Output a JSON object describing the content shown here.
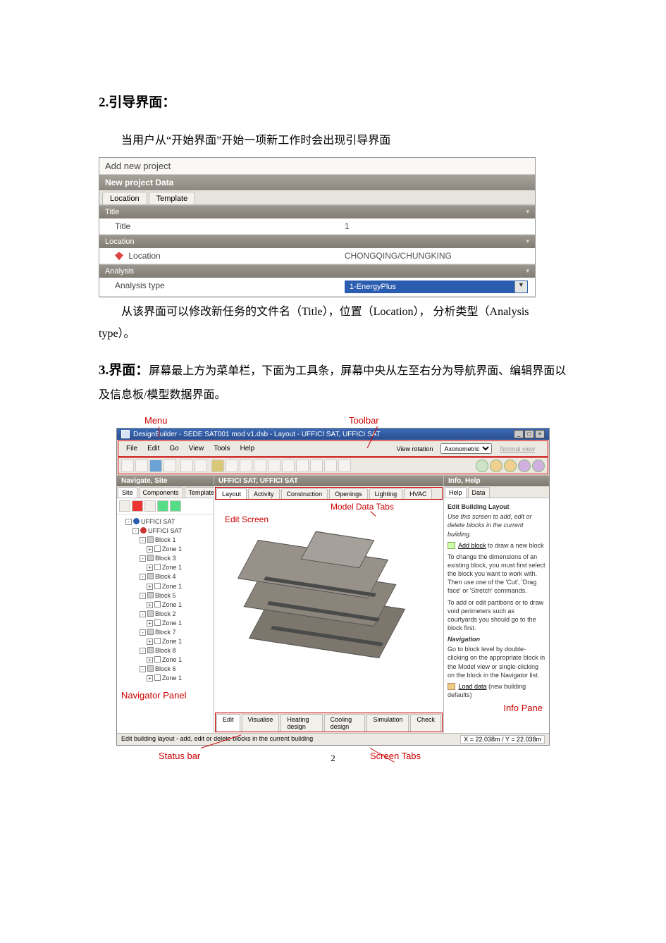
{
  "section2": {
    "heading": "2.引导界面：",
    "intro": "当用户从“开始界面”开始一项新工作时会出现引导界面",
    "after1": "从该界面可以修改新任务的文件名（Title），位置（Location）， 分析类型（Analysis type）。"
  },
  "dialog": {
    "title": "Add new project",
    "panel": "New project Data",
    "tabs": [
      "Location",
      "Template"
    ],
    "sec_title": "Title",
    "row_title_label": "Title",
    "row_title_value": "1",
    "sec_location": "Location",
    "row_location_label": "Location",
    "row_location_value": "CHONGQING/CHUNGKING",
    "sec_analysis": "Analysis",
    "row_analysis_label": "Analysis type",
    "row_analysis_value": "1-EnergyPlus"
  },
  "section3": {
    "heading_bold": "3.界面：",
    "heading_rest": "屏幕最上方为菜单栏，下面为工具条，屏幕中央从左至右分为导航界面、编辑界面以及信息板/模型数据界面。"
  },
  "annots": {
    "menu": "Menu",
    "toolbar": "Toolbar",
    "edit": "Edit Screen",
    "mdt": "Model Data Tabs",
    "nav": "Navigator Panel",
    "info": "Info Pane",
    "status": "Status bar",
    "screentabs": "Screen Tabs"
  },
  "win": {
    "title": "DesignBuilder - SEDE SAT001 mod v1.dsb - Layout - UFFICI SAT, UFFICI SAT",
    "menus": [
      "File",
      "Edit",
      "Go",
      "View",
      "Tools",
      "Help"
    ],
    "viewrot_label": "View rotation",
    "viewrot_value": "Axonometric",
    "normal": "Normal view"
  },
  "cols": {
    "nav": "Navigate, Site",
    "edit": "UFFICI SAT, UFFICI SAT",
    "info": "Info, Help"
  },
  "navtabs": [
    "Site",
    "Components",
    "Templates"
  ],
  "mdtabs": [
    "Layout",
    "Activity",
    "Construction",
    "Openings",
    "Lighting",
    "HVAC"
  ],
  "infotabs": [
    "Help",
    "Data"
  ],
  "bottomtabs": [
    "Edit",
    "Visualise",
    "Heating design",
    "Cooling design",
    "Simulation",
    "Check"
  ],
  "tree": {
    "root": "UFFICI SAT",
    "building": "UFFICI SAT",
    "blocks": [
      {
        "name": "Block 1",
        "zone": "Zone 1"
      },
      {
        "name": "Block 3",
        "zone": "Zone 1"
      },
      {
        "name": "Block 4",
        "zone": "Zone 1"
      },
      {
        "name": "Block 5",
        "zone": "Zone 1"
      },
      {
        "name": "Block 2",
        "zone": "Zone 1"
      },
      {
        "name": "Block 7",
        "zone": "Zone 1"
      },
      {
        "name": "Block 8",
        "zone": "Zone 1"
      },
      {
        "name": "Block 6",
        "zone": "Zone 1"
      }
    ]
  },
  "infohelp": {
    "title": "Edit Building Layout",
    "p1": "Use this screen to add, edit or delete blocks in the current building.",
    "link1": "Add block",
    "p1b": " to draw a new block",
    "p2": "To change the dimensions of an existing block, you must first select the block you want to work with. Then use one of the 'Cut', 'Drag face' or 'Stretch' commands.",
    "p3": "To add or edit partitions or to draw void perimeters such as courtyards you should go to the block first.",
    "navh": "Navigation",
    "p4": "Go to block level by double-clicking on the appropriate block in the Model view or single-clicking on the block in the Navigator list.",
    "link2": "Load data",
    "p5": " (new building defaults)"
  },
  "status": {
    "text": "Edit building layout - add, edit or delete blocks in the current building",
    "coords": "X = 22.038m / Y = 22.038m"
  },
  "pagenum": "2",
  "colors": {
    "annotation": "#c00",
    "win_titlebar": "#2a4e8f",
    "section_bar": "#8d887f",
    "select_highlight": "#2a5db0",
    "building": "#8a847b"
  }
}
